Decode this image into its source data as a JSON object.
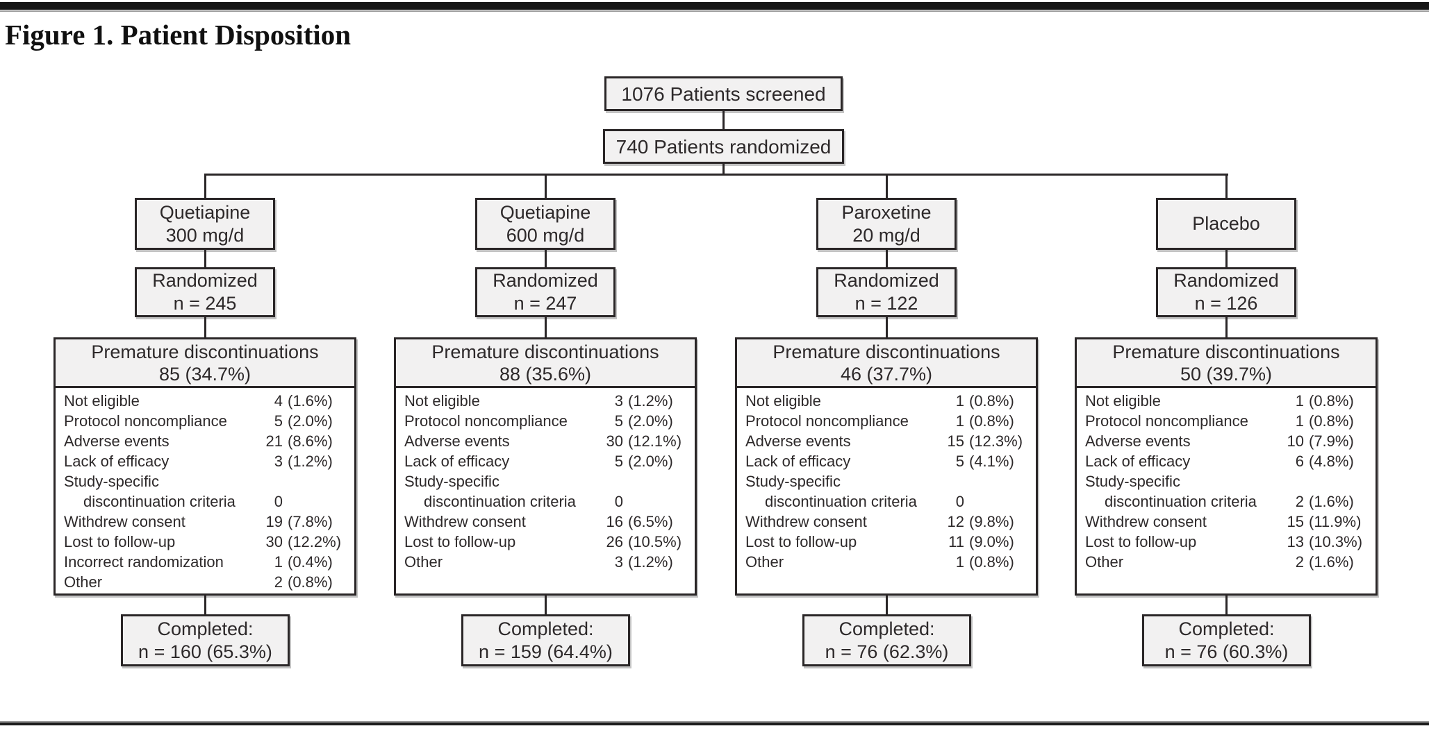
{
  "figure": {
    "title": "Figure 1. Patient Disposition"
  },
  "colors": {
    "box_fill": "#f2f1f1",
    "box_border": "#2a2627",
    "text": "#2d292a",
    "rule": "#1c1c1c"
  },
  "flow": {
    "screened": "1076 Patients screened",
    "randomized": "740 Patients randomized",
    "arms": [
      {
        "name_lines": [
          "Quetiapine",
          "300 mg/d"
        ],
        "randomized_lines": [
          "Randomized",
          "n = 245"
        ],
        "discontinuation_header_lines": [
          "Premature discontinuations",
          "85 (34.7%)"
        ],
        "reasons": [
          {
            "label": "Not eligible",
            "indent": false,
            "count": "4",
            "pct": "(1.6%)"
          },
          {
            "label": "Protocol noncompliance",
            "indent": false,
            "count": "5",
            "pct": "(2.0%)"
          },
          {
            "label": "Adverse events",
            "indent": false,
            "count": "21",
            "pct": "(8.6%)"
          },
          {
            "label": "Lack of efficacy",
            "indent": false,
            "count": "3",
            "pct": "(1.2%)"
          },
          {
            "label": "Study-specific",
            "indent": false,
            "count": "",
            "pct": ""
          },
          {
            "label": "discontinuation criteria",
            "indent": true,
            "count": "0",
            "pct": ""
          },
          {
            "label": "Withdrew consent",
            "indent": false,
            "count": "19",
            "pct": "(7.8%)"
          },
          {
            "label": "Lost to follow-up",
            "indent": false,
            "count": "30",
            "pct": "(12.2%)"
          },
          {
            "label": "Incorrect randomization",
            "indent": false,
            "count": "1",
            "pct": "(0.4%)"
          },
          {
            "label": "Other",
            "indent": false,
            "count": "2",
            "pct": "(0.8%)"
          }
        ],
        "completed_lines": [
          "Completed:",
          "n = 160 (65.3%)"
        ]
      },
      {
        "name_lines": [
          "Quetiapine",
          "600 mg/d"
        ],
        "randomized_lines": [
          "Randomized",
          "n = 247"
        ],
        "discontinuation_header_lines": [
          "Premature discontinuations",
          "88 (35.6%)"
        ],
        "reasons": [
          {
            "label": "Not eligible",
            "indent": false,
            "count": "3",
            "pct": "(1.2%)"
          },
          {
            "label": "Protocol noncompliance",
            "indent": false,
            "count": "5",
            "pct": "(2.0%)"
          },
          {
            "label": "Adverse events",
            "indent": false,
            "count": "30",
            "pct": "(12.1%)"
          },
          {
            "label": "Lack of efficacy",
            "indent": false,
            "count": "5",
            "pct": "(2.0%)"
          },
          {
            "label": "Study-specific",
            "indent": false,
            "count": "",
            "pct": ""
          },
          {
            "label": "discontinuation criteria",
            "indent": true,
            "count": "0",
            "pct": ""
          },
          {
            "label": "Withdrew consent",
            "indent": false,
            "count": "16",
            "pct": "(6.5%)"
          },
          {
            "label": "Lost to follow-up",
            "indent": false,
            "count": "26",
            "pct": "(10.5%)"
          },
          {
            "label": "Other",
            "indent": false,
            "count": "3",
            "pct": "(1.2%)"
          }
        ],
        "completed_lines": [
          "Completed:",
          "n = 159 (64.4%)"
        ]
      },
      {
        "name_lines": [
          "Paroxetine",
          "20 mg/d"
        ],
        "randomized_lines": [
          "Randomized",
          "n = 122"
        ],
        "discontinuation_header_lines": [
          "Premature discontinuations",
          "46 (37.7%)"
        ],
        "reasons": [
          {
            "label": "Not eligible",
            "indent": false,
            "count": "1",
            "pct": "(0.8%)"
          },
          {
            "label": "Protocol noncompliance",
            "indent": false,
            "count": "1",
            "pct": "(0.8%)"
          },
          {
            "label": "Adverse events",
            "indent": false,
            "count": "15",
            "pct": "(12.3%)"
          },
          {
            "label": "Lack of efficacy",
            "indent": false,
            "count": "5",
            "pct": "(4.1%)"
          },
          {
            "label": "Study-specific",
            "indent": false,
            "count": "",
            "pct": ""
          },
          {
            "label": "discontinuation criteria",
            "indent": true,
            "count": "0",
            "pct": ""
          },
          {
            "label": "Withdrew consent",
            "indent": false,
            "count": "12",
            "pct": "(9.8%)"
          },
          {
            "label": "Lost to follow-up",
            "indent": false,
            "count": "11",
            "pct": "(9.0%)"
          },
          {
            "label": "Other",
            "indent": false,
            "count": "1",
            "pct": "(0.8%)"
          }
        ],
        "completed_lines": [
          "Completed:",
          "n = 76 (62.3%)"
        ]
      },
      {
        "name_lines": [
          "Placebo"
        ],
        "randomized_lines": [
          "Randomized",
          "n = 126"
        ],
        "discontinuation_header_lines": [
          "Premature discontinuations",
          "50 (39.7%)"
        ],
        "reasons": [
          {
            "label": "Not eligible",
            "indent": false,
            "count": "1",
            "pct": "(0.8%)"
          },
          {
            "label": "Protocol noncompliance",
            "indent": false,
            "count": "1",
            "pct": "(0.8%)"
          },
          {
            "label": "Adverse events",
            "indent": false,
            "count": "10",
            "pct": "(7.9%)"
          },
          {
            "label": "Lack of efficacy",
            "indent": false,
            "count": "6",
            "pct": "(4.8%)"
          },
          {
            "label": "Study-specific",
            "indent": false,
            "count": "",
            "pct": ""
          },
          {
            "label": "discontinuation criteria",
            "indent": true,
            "count": "2",
            "pct": "(1.6%)"
          },
          {
            "label": "Withdrew consent",
            "indent": false,
            "count": "15",
            "pct": "(11.9%)"
          },
          {
            "label": "Lost to follow-up",
            "indent": false,
            "count": "13",
            "pct": "(10.3%)"
          },
          {
            "label": "Other",
            "indent": false,
            "count": "2",
            "pct": "(1.6%)"
          }
        ],
        "completed_lines": [
          "Completed:",
          "n = 76 (60.3%)"
        ]
      }
    ]
  }
}
